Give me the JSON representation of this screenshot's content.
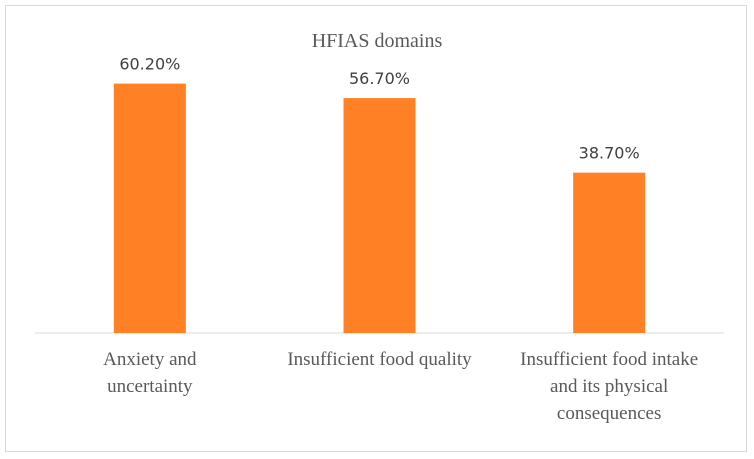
{
  "chart_data": {
    "type": "bar",
    "title": "HFIAS domains",
    "categories": [
      "Anxiety and\nuncertainty",
      "Insufficient food quality",
      "Insufficient food intake\nand its physical\nconsequences"
    ],
    "values": [
      60.2,
      56.7,
      38.7
    ],
    "value_labels": [
      "60.20%",
      "56.70%",
      "38.70%"
    ],
    "ylim": [
      0,
      70
    ],
    "grid": false,
    "legend": "none",
    "bar_color": "#FF8025",
    "axis_color": "#d9d9d9"
  }
}
